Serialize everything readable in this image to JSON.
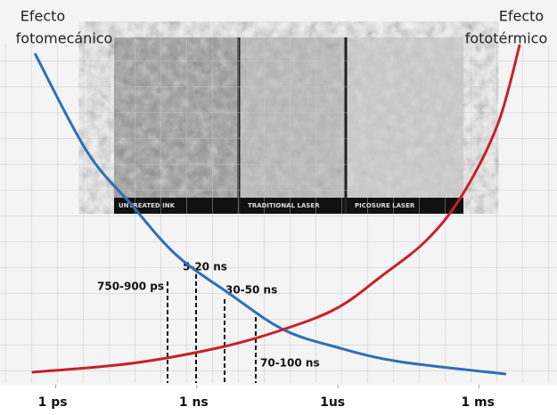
{
  "chart_data": {
    "type": "line",
    "log_x": true,
    "xlim": [
      3e-13,
      0.008
    ],
    "ylim": [
      0,
      100
    ],
    "xticks": [
      {
        "value": 1e-12,
        "label": "1 ps"
      },
      {
        "value": 1e-09,
        "label": "1 ns"
      },
      {
        "value": 1e-06,
        "label": "1us"
      },
      {
        "value": 0.001,
        "label": "1 ms"
      }
    ],
    "series": [
      {
        "color": "#2f6fb5",
        "x": [
          3.6e-13,
          4.6e-12,
          4.1e-11,
          3.6e-10,
          5e-09,
          6.9e-08,
          9.6e-07,
          2e-05,
          0.0038
        ],
        "values": [
          92.5,
          65,
          50,
          36,
          25,
          15,
          10,
          6,
          2.5
        ]
      },
      {
        "color": "#c8202a",
        "x": [
          3.1e-13,
          4.1e-11,
          3.2e-09,
          6.9e-08,
          9.6e-07,
          8.5e-06,
          7.6e-05,
          0.00043,
          0.0025,
          0.0074
        ],
        "values": [
          3,
          5.5,
          10,
          15,
          21,
          30,
          40,
          52.5,
          72.5,
          95
        ]
      }
    ],
    "corner_labels": [
      [
        "Efecto",
        "fotomecánico"
      ],
      [
        "Efecto",
        "fototérmico"
      ]
    ],
    "pulse_labels": [
      "750-900 ps",
      "5-20 ns",
      "30-50 ns",
      "70-100 ns"
    ],
    "photo_labels": [
      "UNTREATED INK",
      "TRADITIONAL LASER",
      "PICOSURE LASER"
    ]
  }
}
